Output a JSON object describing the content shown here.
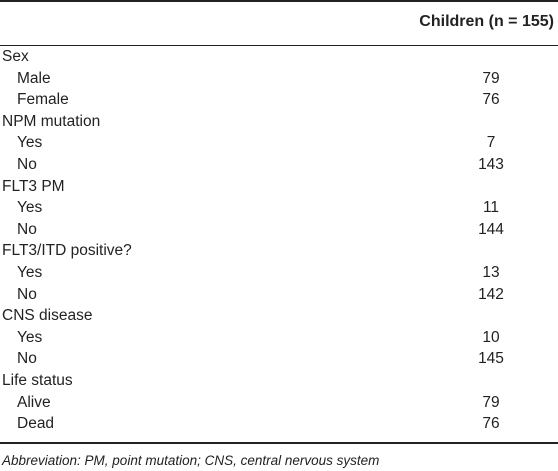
{
  "table": {
    "header": "Children (n = 155)",
    "rows": [
      {
        "label": "Sex",
        "value": ""
      },
      {
        "label": "Male",
        "value": "79"
      },
      {
        "label": "Female",
        "value": "76"
      },
      {
        "label": "NPM mutation",
        "value": ""
      },
      {
        "label": "Yes",
        "value": "7"
      },
      {
        "label": "No",
        "value": "143"
      },
      {
        "label": "FLT3 PM",
        "value": ""
      },
      {
        "label": "Yes",
        "value": "11"
      },
      {
        "label": "No",
        "value": "144"
      },
      {
        "label": "FLT3/ITD positive?",
        "value": ""
      },
      {
        "label": "Yes",
        "value": "13"
      },
      {
        "label": "No",
        "value": "142"
      },
      {
        "label": "CNS disease",
        "value": ""
      },
      {
        "label": "Yes",
        "value": "10"
      },
      {
        "label": "No",
        "value": "145"
      },
      {
        "label": "Life status",
        "value": ""
      },
      {
        "label": "Alive",
        "value": "79"
      },
      {
        "label": "Dead",
        "value": "76"
      }
    ],
    "footnote": "Abbreviation: PM, point mutation; CNS, central nervous system"
  }
}
